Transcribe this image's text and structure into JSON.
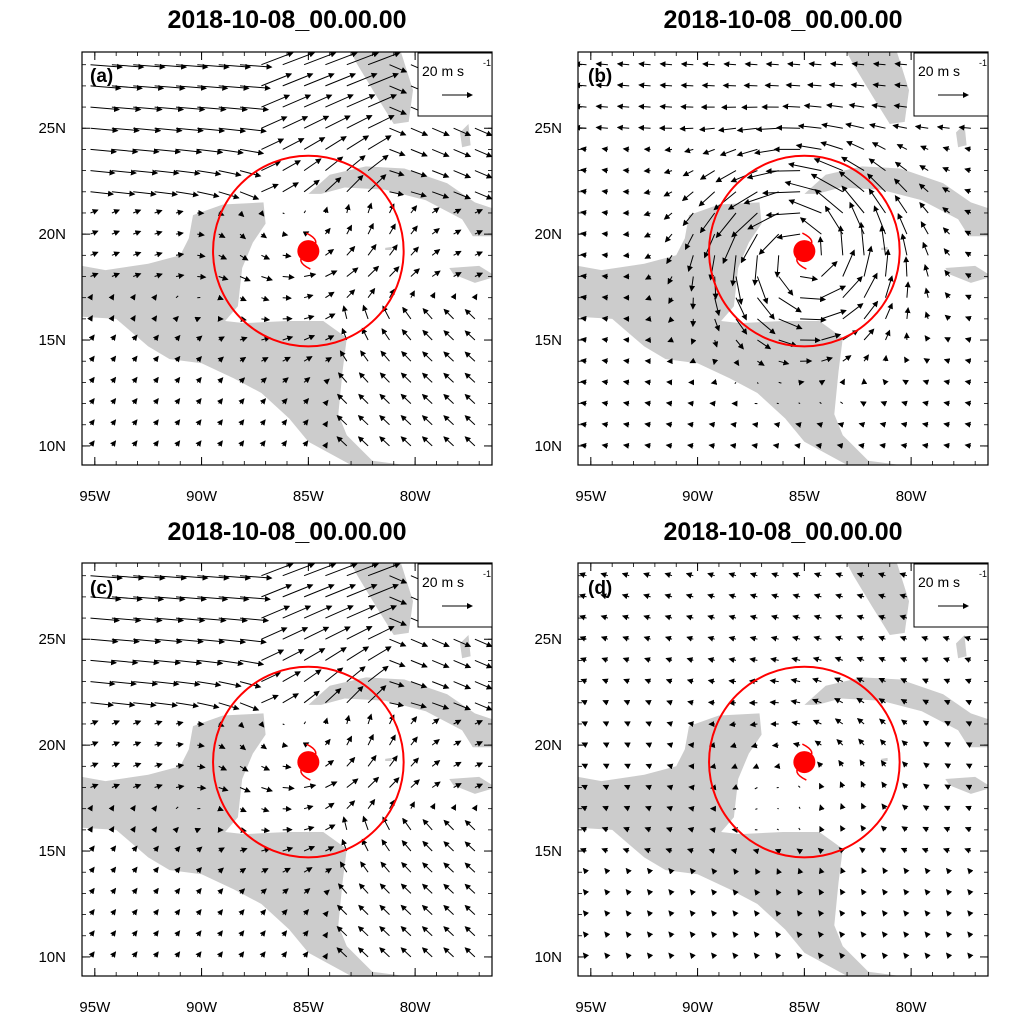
{
  "figure": {
    "panels": [
      {
        "id": "a",
        "title": "2018-10-08_00.00.00",
        "label": "(a)",
        "flow": "strong"
      },
      {
        "id": "b",
        "title": "2018-10-08_00.00.00",
        "label": "(b)",
        "flow": "vortex"
      },
      {
        "id": "c",
        "title": "2018-10-08_00.00.00",
        "label": "(c)",
        "flow": "strong"
      },
      {
        "id": "d",
        "title": "2018-10-08_00.00.00",
        "label": "(d)",
        "flow": "weak"
      }
    ],
    "reference_vector": {
      "speed": "20 m s",
      "exponent": "-1"
    },
    "x_ticks": [
      "95W",
      "90W",
      "85W",
      "80W"
    ],
    "y_ticks": [
      "25N",
      "20N",
      "15N",
      "10N"
    ],
    "storm": {
      "name_hint": "tropical-cyclone-symbol",
      "lon": -85.0,
      "lat": 19.2,
      "radius_deg": 4.5,
      "color": "#ff0000"
    },
    "land_color": "#cccccc",
    "extent": {
      "lon_min": -95.6,
      "lon_max": -76.4,
      "lat_min": 9.1,
      "lat_max": 28.6
    }
  }
}
